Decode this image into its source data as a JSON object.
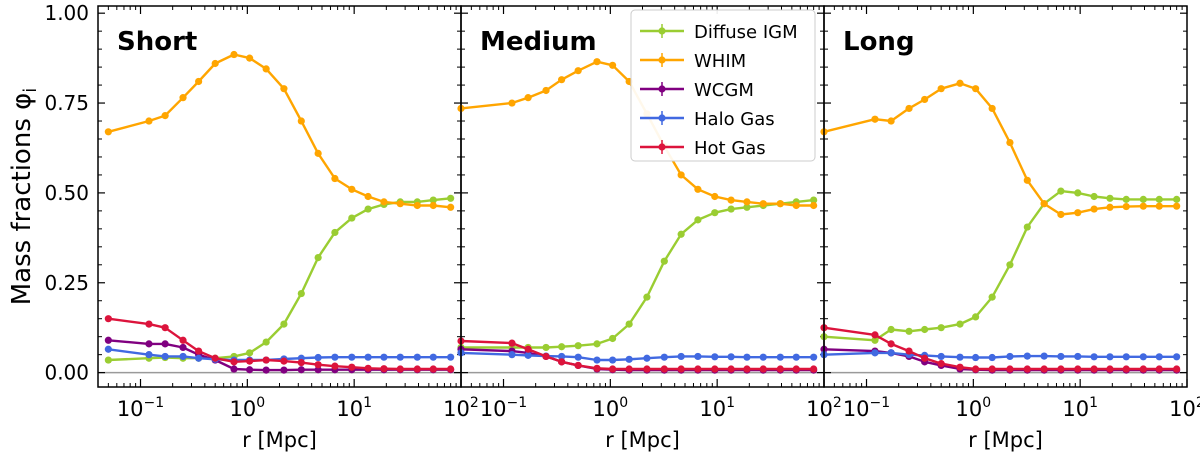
{
  "chart_data": {
    "type": "line",
    "ylabel": "Mass fractions φ",
    "ylabel_sub": "i",
    "xlabel": "r [Mpc]",
    "xscale": "log",
    "xlim": [
      0.04,
      100
    ],
    "ylim": [
      -0.04,
      1.02
    ],
    "yticks": [
      "0.00",
      "0.25",
      "0.50",
      "0.75",
      "1.00"
    ],
    "ytick_values": [
      0,
      0.25,
      0.5,
      0.75,
      1.0
    ],
    "xtick_base": "10",
    "xtick_exps": [
      "−1",
      "0",
      "1",
      "2"
    ],
    "xtick_values": [
      0.1,
      1,
      10,
      100
    ],
    "legend_location": "top-right of middle panel",
    "legend": [
      "Diffuse IGM",
      "WHIM",
      "WCGM",
      "Halo Gas",
      "Hot Gas"
    ],
    "colors": {
      "Diffuse IGM": "#9acd32",
      "WHIM": "#ffa500",
      "WCGM": "#800080",
      "Halo Gas": "#4169e1",
      "Hot Gas": "#dc143c"
    },
    "panels": [
      {
        "title": "Short",
        "x": [
          0.05,
          0.12,
          0.17,
          0.25,
          0.35,
          0.5,
          0.75,
          1.05,
          1.5,
          2.2,
          3.2,
          4.6,
          6.6,
          9.5,
          13.5,
          19,
          27,
          39,
          55,
          80
        ],
        "series": [
          {
            "name": "Diffuse IGM",
            "values": [
              0.035,
              0.04,
              0.042,
              0.04,
              0.04,
              0.04,
              0.045,
              0.055,
              0.085,
              0.135,
              0.22,
              0.32,
              0.39,
              0.43,
              0.455,
              0.468,
              0.475,
              0.475,
              0.48,
              0.485
            ]
          },
          {
            "name": "WHIM",
            "values": [
              0.67,
              0.7,
              0.715,
              0.765,
              0.81,
              0.86,
              0.885,
              0.875,
              0.845,
              0.79,
              0.7,
              0.61,
              0.54,
              0.51,
              0.49,
              0.475,
              0.47,
              0.465,
              0.465,
              0.46
            ]
          },
          {
            "name": "WCGM",
            "values": [
              0.09,
              0.08,
              0.08,
              0.07,
              0.05,
              0.035,
              0.01,
              0.008,
              0.007,
              0.007,
              0.008,
              0.008,
              0.008,
              0.008,
              0.008,
              0.008,
              0.008,
              0.008,
              0.008,
              0.008
            ]
          },
          {
            "name": "Halo Gas",
            "values": [
              0.065,
              0.05,
              0.045,
              0.045,
              0.04,
              0.037,
              0.035,
              0.035,
              0.035,
              0.038,
              0.04,
              0.042,
              0.043,
              0.043,
              0.043,
              0.043,
              0.043,
              0.043,
              0.043,
              0.043
            ]
          },
          {
            "name": "Hot Gas",
            "values": [
              0.15,
              0.135,
              0.125,
              0.09,
              0.06,
              0.04,
              0.03,
              0.032,
              0.035,
              0.032,
              0.028,
              0.022,
              0.018,
              0.015,
              0.012,
              0.011,
              0.01,
              0.01,
              0.01,
              0.01
            ]
          }
        ]
      },
      {
        "title": "Medium",
        "x": [
          0.04,
          0.12,
          0.17,
          0.25,
          0.35,
          0.5,
          0.75,
          1.05,
          1.5,
          2.2,
          3.2,
          4.6,
          6.6,
          9.5,
          13.5,
          19,
          27,
          39,
          55,
          80
        ],
        "series": [
          {
            "name": "Diffuse IGM",
            "values": [
              0.07,
              0.07,
              0.07,
              0.07,
              0.072,
              0.075,
              0.08,
              0.095,
              0.135,
              0.21,
              0.31,
              0.385,
              0.425,
              0.445,
              0.455,
              0.46,
              0.465,
              0.47,
              0.475,
              0.48
            ]
          },
          {
            "name": "WHIM",
            "values": [
              0.735,
              0.75,
              0.765,
              0.785,
              0.815,
              0.84,
              0.865,
              0.855,
              0.81,
              0.72,
              0.63,
              0.55,
              0.51,
              0.49,
              0.48,
              0.475,
              0.47,
              0.47,
              0.465,
              0.465
            ]
          },
          {
            "name": "WCGM",
            "values": [
              0.065,
              0.06,
              0.055,
              0.045,
              0.03,
              0.02,
              0.01,
              0.008,
              0.007,
              0.007,
              0.007,
              0.007,
              0.007,
              0.007,
              0.007,
              0.007,
              0.007,
              0.007,
              0.007,
              0.007
            ]
          },
          {
            "name": "Halo Gas",
            "values": [
              0.055,
              0.05,
              0.048,
              0.046,
              0.045,
              0.043,
              0.035,
              0.035,
              0.037,
              0.04,
              0.043,
              0.045,
              0.045,
              0.044,
              0.044,
              0.043,
              0.043,
              0.043,
              0.043,
              0.043
            ]
          },
          {
            "name": "Hot Gas",
            "values": [
              0.088,
              0.082,
              0.065,
              0.045,
              0.03,
              0.02,
              0.012,
              0.01,
              0.01,
              0.01,
              0.01,
              0.01,
              0.01,
              0.01,
              0.01,
              0.01,
              0.01,
              0.01,
              0.01,
              0.01
            ]
          }
        ]
      },
      {
        "title": "Long",
        "x": [
          0.04,
          0.12,
          0.17,
          0.25,
          0.35,
          0.5,
          0.75,
          1.05,
          1.5,
          2.2,
          3.2,
          4.6,
          6.6,
          9.5,
          13.5,
          19,
          27,
          39,
          55,
          80
        ],
        "series": [
          {
            "name": "Diffuse IGM",
            "values": [
              0.1,
              0.09,
              0.12,
              0.115,
              0.12,
              0.125,
              0.135,
              0.155,
              0.21,
              0.3,
              0.405,
              0.47,
              0.505,
              0.5,
              0.49,
              0.485,
              0.482,
              0.482,
              0.482,
              0.482
            ]
          },
          {
            "name": "WHIM",
            "values": [
              0.67,
              0.705,
              0.7,
              0.735,
              0.76,
              0.79,
              0.805,
              0.79,
              0.735,
              0.64,
              0.535,
              0.47,
              0.44,
              0.445,
              0.455,
              0.46,
              0.462,
              0.463,
              0.463,
              0.463
            ]
          },
          {
            "name": "WCGM",
            "values": [
              0.065,
              0.06,
              0.055,
              0.045,
              0.03,
              0.02,
              0.01,
              0.008,
              0.007,
              0.007,
              0.007,
              0.007,
              0.007,
              0.007,
              0.007,
              0.007,
              0.007,
              0.007,
              0.007,
              0.007
            ]
          },
          {
            "name": "Halo Gas",
            "values": [
              0.05,
              0.055,
              0.055,
              0.05,
              0.048,
              0.045,
              0.043,
              0.042,
              0.042,
              0.045,
              0.046,
              0.046,
              0.045,
              0.045,
              0.044,
              0.044,
              0.044,
              0.044,
              0.044,
              0.044
            ]
          },
          {
            "name": "Hot Gas",
            "values": [
              0.125,
              0.105,
              0.08,
              0.06,
              0.04,
              0.025,
              0.015,
              0.01,
              0.01,
              0.01,
              0.01,
              0.01,
              0.01,
              0.01,
              0.01,
              0.01,
              0.01,
              0.01,
              0.01,
              0.01
            ]
          }
        ]
      }
    ]
  }
}
